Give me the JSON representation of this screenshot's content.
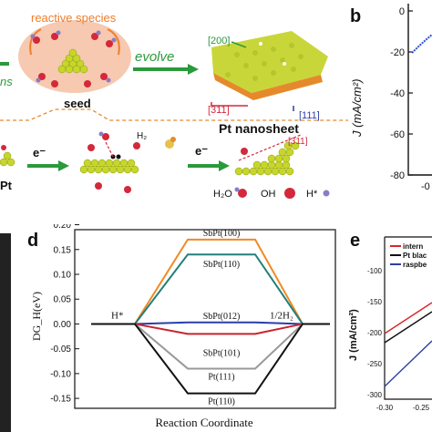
{
  "panel_a": {
    "reactive_species": "reactive species",
    "evolve": "evolve",
    "seed": "seed",
    "nanosheet": "Pt nanosheet",
    "facet_200": "[200]",
    "facet_311": "[311]",
    "facet_111": "[111]",
    "left_fragment": "ns",
    "e_minus_1": "e⁻",
    "e_minus_2": "e⁻",
    "h2": "H₂",
    "facet_311_b": "[311]",
    "pt_fragment": "Pt",
    "legend_h2o": "H₂O",
    "legend_oh": "OH",
    "legend_h": "H*"
  },
  "panel_b": {
    "label": "b",
    "ylabel": "J (mA/cm²)",
    "ticks": [
      "0",
      "-20",
      "-40",
      "-60",
      "-80"
    ],
    "xtick_partial": "-0"
  },
  "panel_d": {
    "label": "d",
    "ylabel": "DG_H(eV)",
    "xlabel": "Reaction Coordinate",
    "left_state": "H*",
    "right_state": "1/2H₂"
  },
  "panel_e": {
    "label": "e",
    "ylabel": "J (mA/cm²)",
    "legend": [
      {
        "label": "intern",
        "color": "#d9262b"
      },
      {
        "label": "Pt blac",
        "color": "#111111"
      },
      {
        "label": "raspbe",
        "color": "#2e3f9e"
      }
    ],
    "yticks": [
      "-100",
      "-150",
      "-200",
      "-250",
      "-300"
    ],
    "xticks": [
      "-0.30",
      "-0.25"
    ]
  },
  "chart_data": {
    "type": "line",
    "ylabel": "DG_H(eV)",
    "xlabel": "Reaction Coordinate",
    "ylim": [
      -0.16,
      0.2
    ],
    "yticks": [
      "0.20",
      "0.15",
      "0.10",
      "0.05",
      "0.00",
      "-0.05",
      "-0.10",
      "-0.15"
    ],
    "series": [
      {
        "name": "SbPt(100)",
        "color": "#f08a24",
        "values": [
          0,
          0.17,
          0
        ]
      },
      {
        "name": "SbPt(110)",
        "color": "#22807a",
        "values": [
          0,
          0.14,
          0
        ]
      },
      {
        "name": "SbPt(012)",
        "color": "#2b3ea8",
        "values": [
          0,
          0.003,
          0
        ]
      },
      {
        "name": "SbPt(101)",
        "color": "#c8242a",
        "values": [
          0,
          -0.02,
          0
        ]
      },
      {
        "name": "Pt(111)",
        "color": "#999999",
        "values": [
          0,
          -0.09,
          0
        ]
      },
      {
        "name": "Pt(110)",
        "color": "#111111",
        "values": [
          0,
          -0.14,
          0
        ]
      }
    ]
  }
}
